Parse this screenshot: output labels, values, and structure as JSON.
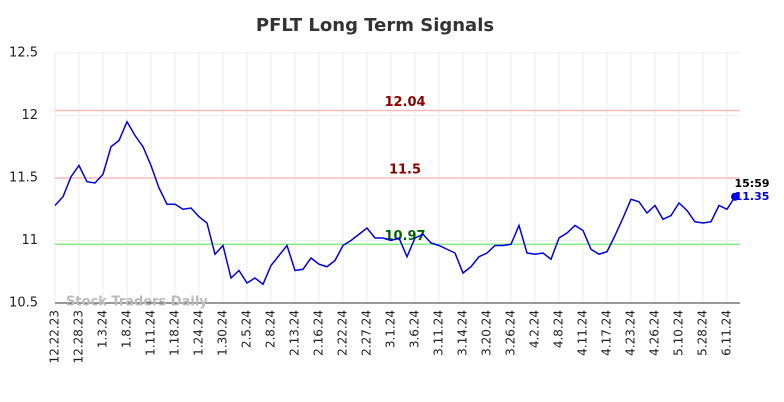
{
  "chart_data": {
    "type": "line",
    "title": "PFLT Long Term Signals",
    "categories": [
      "12.22.23",
      null,
      null,
      "12.28.23",
      null,
      null,
      "1.3.24",
      null,
      null,
      "1.8.24",
      null,
      null,
      "1.11.24",
      null,
      null,
      "1.18.24",
      null,
      null,
      "1.24.24",
      null,
      null,
      "1.30.24",
      null,
      null,
      "2.5.24",
      null,
      null,
      "2.8.24",
      null,
      null,
      "2.13.24",
      null,
      null,
      "2.16.24",
      null,
      null,
      "2.22.24",
      null,
      null,
      "2.27.24",
      null,
      null,
      "3.1.24",
      null,
      null,
      "3.6.24",
      null,
      null,
      "3.11.24",
      null,
      null,
      "3.14.24",
      null,
      null,
      "3.20.24",
      null,
      null,
      "3.26.24",
      null,
      null,
      "4.2.24",
      null,
      null,
      "4.8.24",
      null,
      null,
      "4.11.24",
      null,
      null,
      "4.17.24",
      null,
      null,
      "4.23.24",
      null,
      null,
      "4.26.24",
      null,
      null,
      "5.10.24",
      null,
      null,
      "5.28.24",
      null,
      null,
      "6.11.24",
      null
    ],
    "series": [
      {
        "name": "PFLT",
        "color": "#0000dd",
        "values": [
          11.28,
          11.35,
          11.51,
          11.6,
          11.47,
          11.46,
          11.53,
          11.75,
          11.8,
          11.95,
          11.84,
          11.75,
          11.6,
          11.42,
          11.29,
          11.29,
          11.25,
          11.26,
          11.19,
          11.14,
          10.89,
          10.96,
          10.7,
          10.76,
          10.66,
          10.7,
          10.65,
          10.8,
          10.88,
          10.96,
          10.76,
          10.77,
          10.86,
          10.81,
          10.79,
          10.84,
          10.96,
          11.0,
          11.05,
          11.1,
          11.02,
          11.02,
          11.0,
          11.02,
          10.87,
          11.02,
          11.05,
          10.98,
          10.96,
          10.93,
          10.9,
          10.74,
          10.79,
          10.87,
          10.9,
          10.96,
          10.96,
          10.97,
          11.12,
          10.9,
          10.89,
          10.9,
          10.85,
          11.02,
          11.06,
          11.12,
          11.08,
          10.93,
          10.89,
          10.91,
          11.04,
          11.18,
          11.33,
          11.31,
          11.22,
          11.28,
          11.17,
          11.2,
          11.3,
          11.24,
          11.15,
          11.14,
          11.15,
          11.28,
          11.25,
          11.35
        ]
      }
    ],
    "ylim": [
      10.5,
      12.5
    ],
    "yticks": [
      10.5,
      11,
      11.5,
      12,
      12.5
    ],
    "grid": true,
    "hlines": [
      {
        "value": 12.04,
        "color": "#ffbbbb",
        "label_color": "#8b0000"
      },
      {
        "value": 11.5,
        "color": "#ffbbbb",
        "label_color": "#8b0000"
      },
      {
        "value": 10.97,
        "color": "#88ee88",
        "label_color": "#006400"
      }
    ],
    "last_time": "15:59",
    "watermark": "Stock Traders Daily"
  }
}
